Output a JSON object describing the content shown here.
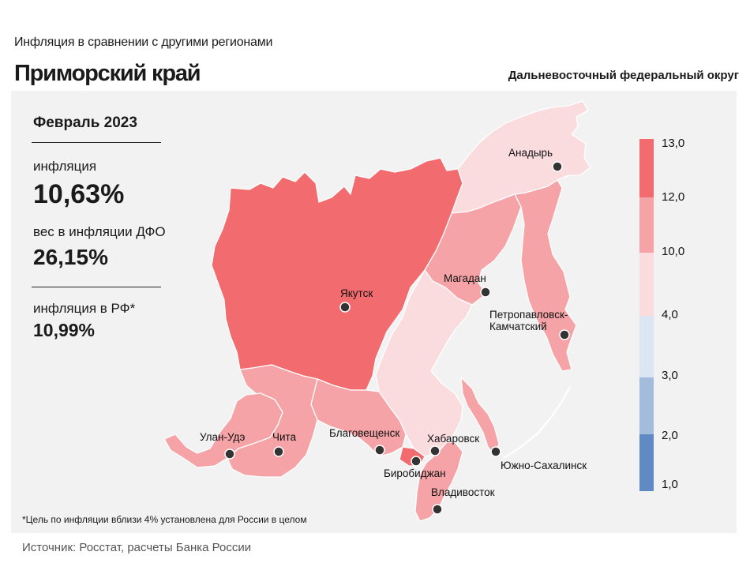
{
  "header": {
    "subtitle": "Инфляция  в сравнении  с другими  регионами",
    "title": "Приморский край",
    "district": "Дальневосточный федеральный округ"
  },
  "stats": {
    "period": "Февраль 2023",
    "inflation_label": "инфляция",
    "inflation_value": "10,63%",
    "weight_label": "вес в инфляции  ДФО",
    "weight_value": "26,15%",
    "rf_label": "инфляция  в РФ*",
    "rf_value": "10,99%"
  },
  "legend": {
    "ticks": [
      "13,0",
      "12,0",
      "10,0",
      "4,0",
      "3,0",
      "2,0",
      "1,0"
    ],
    "colors": [
      "#f26b6e",
      "#f5a3a6",
      "#fadcdf",
      "#dce6f2",
      "#a3bcdc",
      "#5f8ac4"
    ]
  },
  "cities": [
    {
      "name": "Анадырь"
    },
    {
      "name": "Якутск"
    },
    {
      "name": "Магадан"
    },
    {
      "name": "Петропавловск-"
    },
    {
      "name": "Камчатский"
    },
    {
      "name": "Улан-Удэ"
    },
    {
      "name": "Чита"
    },
    {
      "name": "Благовещенск"
    },
    {
      "name": "Хабаровск"
    },
    {
      "name": "Биробиджан"
    },
    {
      "name": "Южно-Сахалинск"
    },
    {
      "name": "Владивосток"
    }
  ],
  "footnote": "*Цель по инфляции вблизи 4% установлена для России в целом",
  "source": "Источник: Росстат, расчеты  Банка  России"
}
